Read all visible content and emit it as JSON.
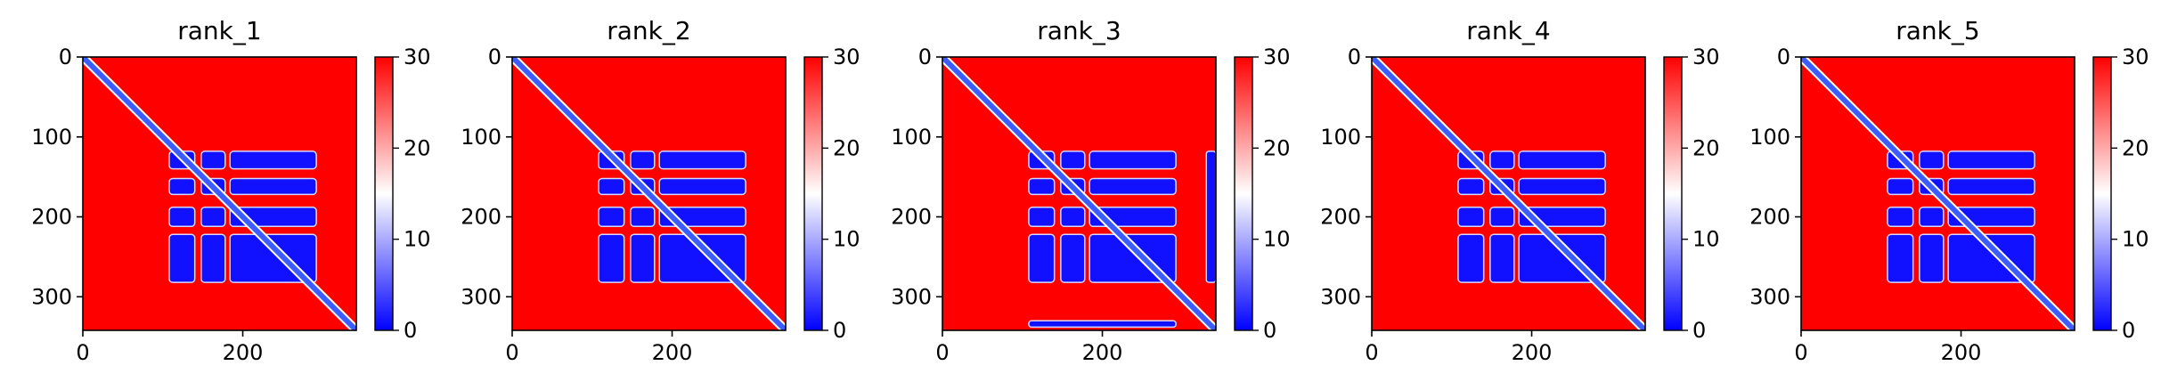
{
  "colors": {
    "low": "#0000ff",
    "mid": "#ffffff",
    "high": "#ff0000",
    "diagonal": "#3c5cff",
    "axis": "#000000"
  },
  "colormap": "bwr",
  "chart_data": [
    {
      "type": "heatmap",
      "title": "rank_1",
      "xlabel": "",
      "ylabel": "",
      "x_ticks": [
        0,
        200
      ],
      "y_ticks": [
        0,
        100,
        200,
        300
      ],
      "xlim": [
        0,
        342
      ],
      "ylim": [
        342,
        0
      ],
      "colorbar": {
        "ticks": [
          0,
          10,
          20,
          30
        ],
        "range": [
          0,
          30
        ]
      },
      "values": {
        "block_value": 1,
        "background_value": 30,
        "diagonal_value": 0,
        "row_bands": [
          [
            118,
            140
          ],
          [
            152,
            172
          ],
          [
            188,
            212
          ],
          [
            222,
            282
          ]
        ],
        "col_bands": [
          [
            108,
            140
          ],
          [
            148,
            178
          ],
          [
            184,
            292
          ]
        ],
        "extra_blocks": []
      }
    },
    {
      "type": "heatmap",
      "title": "rank_2",
      "xlabel": "",
      "ylabel": "",
      "x_ticks": [
        0,
        200
      ],
      "y_ticks": [
        0,
        100,
        200,
        300
      ],
      "xlim": [
        0,
        342
      ],
      "ylim": [
        342,
        0
      ],
      "colorbar": {
        "ticks": [
          0,
          10,
          20,
          30
        ],
        "range": [
          0,
          30
        ]
      },
      "values": {
        "block_value": 1,
        "background_value": 30,
        "diagonal_value": 0,
        "row_bands": [
          [
            118,
            140
          ],
          [
            152,
            172
          ],
          [
            188,
            212
          ],
          [
            222,
            282
          ]
        ],
        "col_bands": [
          [
            108,
            140
          ],
          [
            148,
            178
          ],
          [
            184,
            292
          ]
        ],
        "extra_blocks": []
      }
    },
    {
      "type": "heatmap",
      "title": "rank_3",
      "xlabel": "",
      "ylabel": "",
      "x_ticks": [
        0,
        200
      ],
      "y_ticks": [
        0,
        100,
        200,
        300
      ],
      "xlim": [
        0,
        342
      ],
      "ylim": [
        342,
        0
      ],
      "colorbar": {
        "ticks": [
          0,
          10,
          20,
          30
        ],
        "range": [
          0,
          30
        ]
      },
      "values": {
        "block_value": 1,
        "background_value": 30,
        "diagonal_value": 0,
        "row_bands": [
          [
            118,
            140
          ],
          [
            152,
            172
          ],
          [
            188,
            212
          ],
          [
            222,
            282
          ]
        ],
        "col_bands": [
          [
            108,
            140
          ],
          [
            148,
            178
          ],
          [
            184,
            292
          ]
        ],
        "extra_blocks": [
          {
            "x": [
              330,
              342
            ],
            "y": [
              118,
              282
            ]
          },
          {
            "x": [
              108,
              292
            ],
            "y": [
              330,
              338
            ]
          }
        ]
      }
    },
    {
      "type": "heatmap",
      "title": "rank_4",
      "xlabel": "",
      "ylabel": "",
      "x_ticks": [
        0,
        200
      ],
      "y_ticks": [
        0,
        100,
        200,
        300
      ],
      "xlim": [
        0,
        342
      ],
      "ylim": [
        342,
        0
      ],
      "colorbar": {
        "ticks": [
          0,
          10,
          20,
          30
        ],
        "range": [
          0,
          30
        ]
      },
      "values": {
        "block_value": 1,
        "background_value": 30,
        "diagonal_value": 0,
        "row_bands": [
          [
            118,
            140
          ],
          [
            152,
            172
          ],
          [
            188,
            212
          ],
          [
            222,
            282
          ]
        ],
        "col_bands": [
          [
            108,
            140
          ],
          [
            148,
            178
          ],
          [
            184,
            292
          ]
        ],
        "extra_blocks": []
      }
    },
    {
      "type": "heatmap",
      "title": "rank_5",
      "xlabel": "",
      "ylabel": "",
      "x_ticks": [
        0,
        200
      ],
      "y_ticks": [
        0,
        100,
        200,
        300
      ],
      "xlim": [
        0,
        342
      ],
      "ylim": [
        342,
        0
      ],
      "colorbar": {
        "ticks": [
          0,
          10,
          20,
          30
        ],
        "range": [
          0,
          30
        ]
      },
      "values": {
        "block_value": 1,
        "background_value": 30,
        "diagonal_value": 0,
        "row_bands": [
          [
            118,
            140
          ],
          [
            152,
            172
          ],
          [
            188,
            212
          ],
          [
            222,
            282
          ]
        ],
        "col_bands": [
          [
            108,
            140
          ],
          [
            148,
            178
          ],
          [
            184,
            292
          ]
        ],
        "extra_blocks": []
      }
    }
  ]
}
